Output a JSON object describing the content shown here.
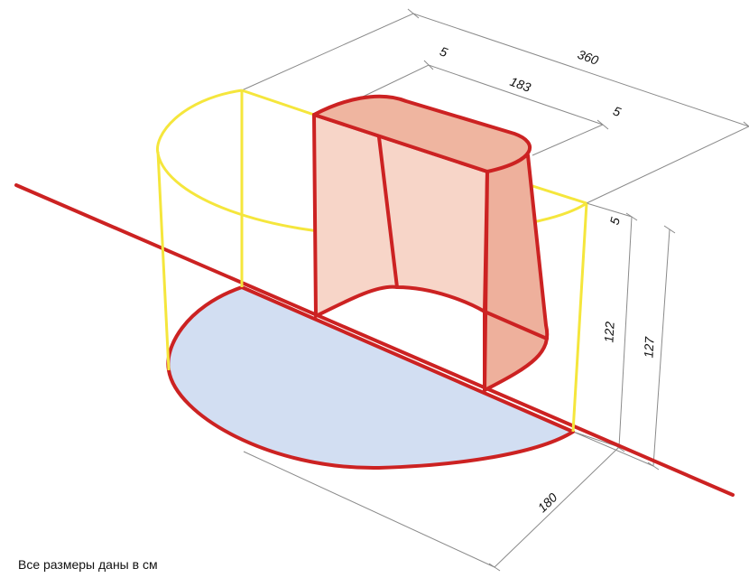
{
  "dimensions": {
    "total_width": "360",
    "depth_top_left": "5",
    "inner_width": "183",
    "depth_top_right": "5",
    "depth_side": "5",
    "inner_height": "122",
    "total_height": "127",
    "crease_radius": "180"
  },
  "note": "Все размеры даны в см"
}
